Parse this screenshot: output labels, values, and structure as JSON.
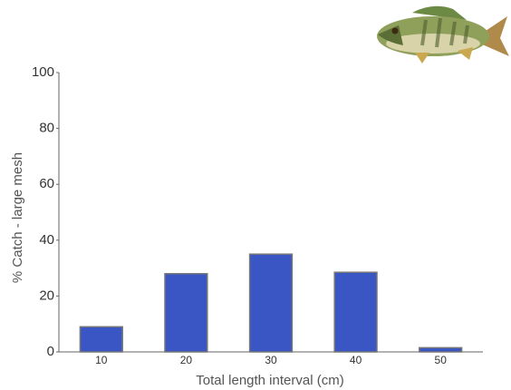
{
  "chart_data": {
    "type": "bar",
    "x_label": "Total length interval (cm)",
    "y_label": "% Catch - large mesh",
    "categories": [
      "10",
      "20",
      "30",
      "40",
      "50"
    ],
    "values": [
      9,
      28,
      35,
      28.5,
      1.5
    ],
    "color": "#3a55c4",
    "ylim": [
      0,
      100
    ],
    "yticks": [
      0,
      20,
      40,
      60,
      80,
      100
    ],
    "grid": false
  }
}
